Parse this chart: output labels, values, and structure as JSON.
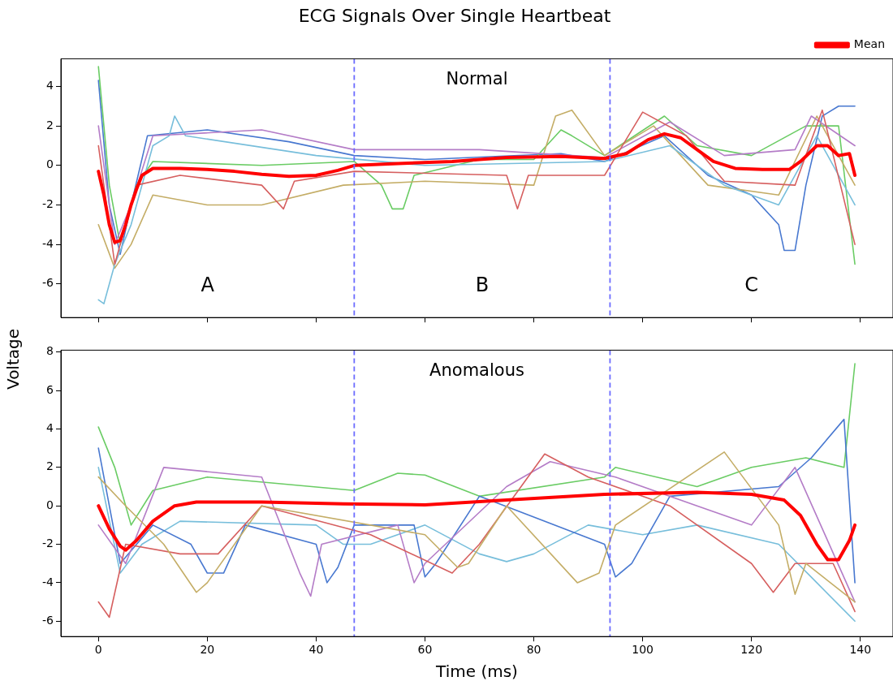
{
  "chart_data": [
    {
      "type": "line",
      "title": "ECG Signals Over Single Heartbeat",
      "ylabel": "Voltage",
      "xlim": [
        -6.9,
        146
      ],
      "xticks": [
        0,
        20,
        40,
        60,
        80,
        100,
        120,
        140
      ],
      "ylim": [
        -7.7,
        5.4
      ],
      "yticks": [
        -6,
        -4,
        -2,
        0,
        2,
        4
      ],
      "tick_labels": "y",
      "legend": "top right",
      "grid": false,
      "line_style": "solid",
      "marker": "none",
      "ref_lines": [
        {
          "axis": "x",
          "value": 47,
          "color": "#6b6bff",
          "line_style": "dashed"
        },
        {
          "axis": "x",
          "value": 94,
          "color": "#6b6bff",
          "line_style": "dashed"
        }
      ],
      "annotations": [
        "Normal",
        "A",
        "B",
        "C"
      ],
      "series": [
        {
          "color": "#4878d0",
          "x": [
            0,
            2,
            4,
            6,
            9,
            20,
            35,
            47,
            60,
            85,
            93,
            104,
            112,
            120,
            125,
            126,
            128,
            130,
            133,
            136,
            139
          ],
          "values": [
            4.3,
            -2,
            -4.5,
            -2,
            1.5,
            1.8,
            1.2,
            0.5,
            0.3,
            0.6,
            0.2,
            1.5,
            -0.5,
            -1.5,
            -3,
            -4.3,
            -4.3,
            -1,
            2.5,
            3,
            3
          ]
        },
        {
          "color": "#6acc64",
          "x": [
            0,
            2,
            4,
            7,
            10,
            30,
            47,
            52,
            54,
            56,
            58,
            70,
            80,
            85,
            87,
            93,
            104,
            110,
            120,
            130,
            136,
            139
          ],
          "values": [
            5,
            -1,
            -4,
            -1,
            0.2,
            0,
            0.2,
            -1,
            -2.2,
            -2.2,
            -0.5,
            0.3,
            0.3,
            1.8,
            1.5,
            0.5,
            2.5,
            1,
            0.5,
            2,
            2,
            -5
          ]
        },
        {
          "color": "#c4ad66",
          "x": [
            0,
            3,
            6,
            10,
            20,
            30,
            45,
            60,
            80,
            84,
            87,
            93,
            102,
            112,
            125,
            132,
            139
          ],
          "values": [
            -3,
            -5.2,
            -4,
            -1.5,
            -2,
            -2,
            -1,
            -0.8,
            -1,
            2.5,
            2.8,
            0.5,
            2,
            -1,
            -1.5,
            2.5,
            -1
          ]
        },
        {
          "color": "#77bedb",
          "x": [
            0,
            1,
            3,
            6,
            10,
            13,
            14,
            16,
            40,
            60,
            93,
            105,
            115,
            125,
            132,
            139
          ],
          "values": [
            -6.8,
            -7,
            -5,
            -3,
            1,
            1.5,
            2.5,
            1.5,
            0.5,
            0,
            0.2,
            1,
            -1,
            -2,
            1.5,
            -2
          ]
        },
        {
          "color": "#b47cc7",
          "x": [
            0,
            3,
            6,
            10,
            30,
            47,
            70,
            93,
            105,
            115,
            128,
            131,
            139
          ],
          "values": [
            2,
            -4,
            -2,
            1.5,
            1.8,
            0.8,
            0.8,
            0.4,
            2.2,
            0.5,
            0.8,
            2.5,
            1
          ]
        },
        {
          "color": "#d65f5f",
          "x": [
            0,
            3,
            7,
            15,
            30,
            34,
            36,
            47,
            75,
            77,
            79,
            93,
            100,
            108,
            115,
            128,
            133,
            139
          ],
          "values": [
            1,
            -5,
            -1,
            -0.5,
            -1,
            -2.2,
            -0.8,
            -0.3,
            -0.5,
            -2.2,
            -0.5,
            -0.5,
            2.7,
            1.5,
            -0.8,
            -1,
            2.8,
            -4
          ]
        },
        {
          "name": "Mean",
          "color": "#ff0000",
          "x": [
            0,
            1,
            2,
            3,
            4,
            5,
            6,
            7,
            8,
            10,
            15,
            20,
            25,
            30,
            35,
            40,
            44,
            47,
            55,
            65,
            75,
            85,
            93,
            97,
            101,
            104,
            107,
            110,
            113,
            117,
            122,
            127,
            129,
            132,
            134,
            136,
            138,
            139
          ],
          "values": [
            -0.3,
            -1.5,
            -3,
            -3.9,
            -3.8,
            -3,
            -2,
            -1.2,
            -0.5,
            -0.15,
            -0.15,
            -0.2,
            -0.3,
            -0.45,
            -0.55,
            -0.5,
            -0.25,
            0,
            0.1,
            0.2,
            0.4,
            0.45,
            0.35,
            0.6,
            1.3,
            1.6,
            1.4,
            0.8,
            0.2,
            -0.15,
            -0.2,
            -0.2,
            0.2,
            1,
            1,
            0.5,
            0.6,
            -0.5
          ]
        }
      ]
    },
    {
      "type": "line",
      "xlabel": "Time (ms)",
      "xlim": [
        -6.9,
        146
      ],
      "xticks": [
        0,
        20,
        40,
        60,
        80,
        100,
        120,
        140
      ],
      "ylim": [
        -6.8,
        8.1
      ],
      "yticks": [
        -6,
        -4,
        -2,
        0,
        2,
        4,
        6,
        8
      ],
      "grid": false,
      "line_style": "solid",
      "marker": "none",
      "ref_lines": [
        {
          "axis": "x",
          "value": 47,
          "color": "#6b6bff",
          "line_style": "dashed"
        },
        {
          "axis": "x",
          "value": 94,
          "color": "#6b6bff",
          "line_style": "dashed"
        }
      ],
      "annotations": [
        "Anomalous"
      ],
      "series": [
        {
          "color": "#6acc64",
          "x": [
            0,
            3,
            6,
            10,
            20,
            47,
            55,
            60,
            70,
            93,
            95,
            110,
            120,
            130,
            137,
            139
          ],
          "values": [
            4.1,
            2,
            -1,
            0.8,
            1.5,
            0.8,
            1.7,
            1.6,
            0.5,
            1.5,
            2,
            1,
            2,
            2.5,
            2,
            7.4
          ]
        },
        {
          "color": "#77bedb",
          "x": [
            0,
            4,
            8,
            15,
            40,
            45,
            50,
            60,
            70,
            75,
            80,
            90,
            100,
            110,
            125,
            132,
            139
          ],
          "values": [
            2,
            -3.5,
            -2,
            -0.8,
            -1,
            -2,
            -2,
            -1,
            -2.5,
            -2.9,
            -2.5,
            -1,
            -1.5,
            -1,
            -2,
            -4,
            -6
          ]
        },
        {
          "color": "#4878d0",
          "x": [
            0,
            4,
            10,
            17,
            20,
            23,
            27,
            40,
            42,
            44,
            47,
            58,
            60,
            62,
            70,
            93,
            95,
            98,
            105,
            125,
            131,
            137,
            139
          ],
          "values": [
            3,
            -3,
            -1,
            -2,
            -3.5,
            -3.5,
            -1,
            -2,
            -4,
            -3.2,
            -1,
            -1,
            -3.7,
            -3,
            0.5,
            -2,
            -3.7,
            -3,
            0.5,
            1,
            2.5,
            4.5,
            -4
          ]
        },
        {
          "color": "#b47cc7",
          "x": [
            0,
            5,
            12,
            30,
            37,
            39,
            41,
            55,
            58,
            60,
            75,
            83,
            95,
            110,
            120,
            128,
            139
          ],
          "values": [
            -1,
            -3,
            2,
            1.5,
            -3.5,
            -4.7,
            -2,
            -1,
            -4,
            -3,
            1,
            2.3,
            1.5,
            0,
            -1,
            2,
            -5
          ]
        },
        {
          "color": "#d65f5f",
          "x": [
            0,
            2,
            5,
            15,
            22,
            30,
            50,
            65,
            70,
            82,
            90,
            105,
            120,
            124,
            128,
            135,
            139
          ],
          "values": [
            -5,
            -5.8,
            -2,
            -2.5,
            -2.5,
            0,
            -1.5,
            -3.5,
            -2,
            2.7,
            1.5,
            0,
            -3,
            -4.5,
            -3,
            -3,
            -5.5
          ]
        },
        {
          "color": "#c4ad66",
          "x": [
            0,
            5,
            12,
            18,
            20,
            30,
            60,
            66,
            68,
            75,
            88,
            92,
            95,
            115,
            125,
            128,
            130,
            139
          ],
          "values": [
            1.5,
            0,
            -2,
            -4.5,
            -4,
            0,
            -1.5,
            -3.2,
            -3,
            0,
            -4,
            -3.5,
            -1,
            2.8,
            -1,
            -4.6,
            -3,
            -5
          ]
        },
        {
          "color": "#ff0000",
          "x": [
            0,
            2,
            4,
            5,
            7,
            10,
            14,
            18,
            30,
            45,
            60,
            75,
            93,
            110,
            120,
            126,
            129,
            132,
            134,
            136,
            138,
            139
          ],
          "values": [
            0,
            -1.2,
            -2.1,
            -2.3,
            -1.8,
            -0.8,
            0,
            0.2,
            0.2,
            0.1,
            0.05,
            0.3,
            0.6,
            0.7,
            0.6,
            0.3,
            -0.5,
            -2,
            -2.8,
            -2.8,
            -1.8,
            -1
          ]
        }
      ]
    }
  ]
}
